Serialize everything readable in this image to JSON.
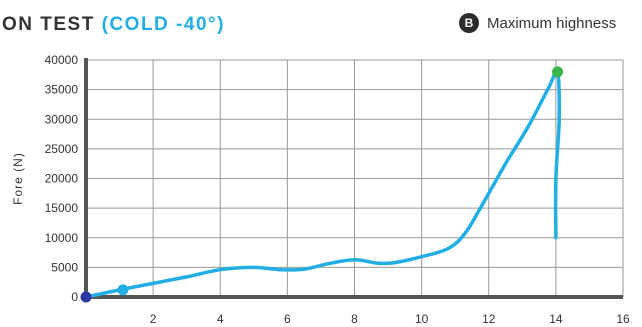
{
  "title": {
    "main": "ON TEST",
    "condition": "(COLD -40°)"
  },
  "legend": {
    "marker": "B",
    "label": "Maximum highness"
  },
  "colors": {
    "line": "#22aee4",
    "title_accent": "#22aee4",
    "start_point": "#2b3aa0",
    "early_point": "#22aee4",
    "max_point": "#3ab54a",
    "axis": "#555555",
    "grid": "#999999"
  },
  "chart_data": {
    "type": "line",
    "title": "ON TEST (COLD -40°)",
    "xlabel": "",
    "ylabel": "Fore (N)",
    "xlim": [
      0,
      16
    ],
    "ylim": [
      0,
      40000
    ],
    "xticks": [
      2,
      4,
      6,
      8,
      10,
      12,
      14,
      16
    ],
    "yticks": [
      0,
      5000,
      10000,
      15000,
      20000,
      25000,
      30000,
      35000,
      40000
    ],
    "grid": true,
    "legend_position": "top-right",
    "series": [
      {
        "x": [
          0,
          1,
          2,
          3,
          4,
          5,
          5.8,
          6.5,
          7.2,
          8,
          8.7,
          9.2,
          10,
          10.8,
          11.3,
          11.8,
          12.5,
          13.2,
          13.8,
          14.05,
          14.1,
          14.0,
          14.0
        ],
        "y": [
          0,
          1200,
          2300,
          3400,
          4600,
          5000,
          4600,
          4700,
          5600,
          6300,
          5700,
          5800,
          6800,
          8200,
          10800,
          15500,
          22500,
          29000,
          35500,
          38000,
          30000,
          20000,
          10000
        ]
      }
    ],
    "points": [
      {
        "x": 0,
        "y": 0,
        "role": "start"
      },
      {
        "x": 1.1,
        "y": 1200,
        "role": "early"
      },
      {
        "x": 14.05,
        "y": 38000,
        "role": "max",
        "legend": "B"
      }
    ]
  }
}
